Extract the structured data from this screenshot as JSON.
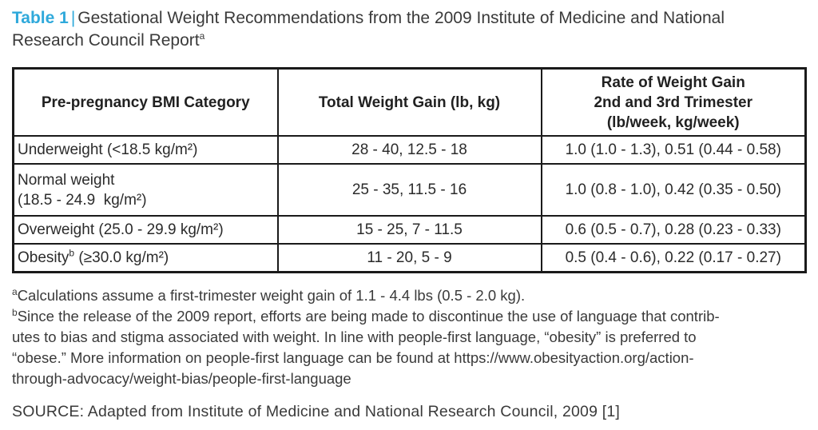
{
  "colors": {
    "accent_blue": "#2fa9db",
    "body_text": "#3a3a3a",
    "table_border": "#1a1a1a"
  },
  "caption": {
    "label": "Table 1",
    "separator": "|",
    "text": "Gestational Weight Recommendations from the 2009 Institute of Medicine and National\nResearch Council Report",
    "footnote_marker": "a"
  },
  "table": {
    "headers": [
      "Pre-pregnancy BMI Category",
      "Total Weight Gain (lb, kg)",
      "Rate of Weight Gain\n2nd and 3rd Trimester\n(lb/week, kg/week)"
    ],
    "rows": [
      {
        "cells": [
          "Underweight (<18.5 kg/m²)",
          "28 - 40, 12.5 - 18",
          "1.0 (1.0 - 1.3), 0.51 (0.44 - 0.58)"
        ]
      },
      {
        "cells": [
          "Normal weight\n(18.5 - 24.9  kg/m²)",
          "25 - 35, 11.5 - 16",
          "1.0 (0.8 - 1.0), 0.42 (0.35 - 0.50)"
        ]
      },
      {
        "cells": [
          "Overweight (25.0 - 29.9 kg/m²)",
          "15 - 25, 7 - 11.5",
          "0.6 (0.5 - 0.7), 0.28 (0.23 - 0.33)"
        ]
      },
      {
        "col1_parts": {
          "pre": "Obesity",
          "sup": "b",
          "post": " (≥30.0 kg/m²)"
        },
        "cells": [
          "",
          "11 - 20, 5 - 9",
          "0.5 (0.4 - 0.6), 0.22 (0.17 - 0.27)"
        ]
      }
    ]
  },
  "footnotes": {
    "a": {
      "marker": "a",
      "lines": [
        "Calculations assume a first-trimester weight gain of 1.1 - 4.4 lbs (0.5 - 2.0 kg)."
      ]
    },
    "b": {
      "marker": "b",
      "lines": [
        "Since the release of the 2009 report, efforts are being made to discontinue the use of language that contrib-",
        "utes to bias and stigma associated with weight. In line with people-first language, “obesity” is preferred to",
        "“obese.” More information on people-first language can be found at https://www.obesityaction.org/action-",
        "through-advocacy/weight-bias/people-first-language"
      ]
    }
  },
  "source": "SOURCE: Adapted from Institute of Medicine and National Research Council, 2009 [1]"
}
